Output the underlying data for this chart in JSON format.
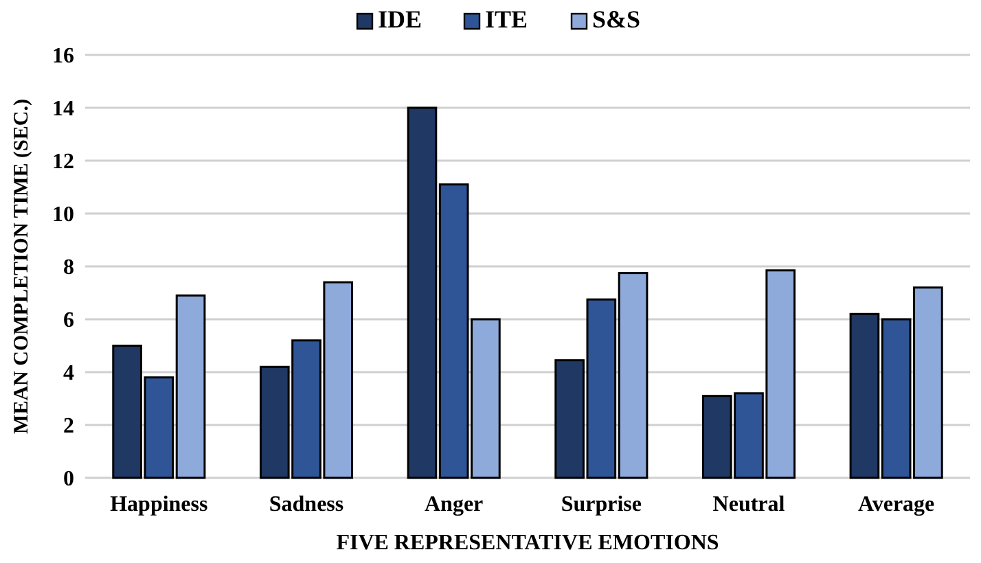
{
  "chart_data": {
    "type": "bar",
    "xlabel": "FIVE REPRESENTATIVE EMOTIONS",
    "ylabel": "MEAN COMPLETION TIME (SEC.)",
    "categories": [
      "Happiness",
      "Sadness",
      "Anger",
      "Surprise",
      "Neutral",
      "Average"
    ],
    "series": [
      {
        "name": "IDE",
        "color": "#1f3864",
        "values": [
          5.0,
          4.2,
          14.0,
          4.45,
          3.1,
          6.2
        ]
      },
      {
        "name": "ITE",
        "color": "#2f5597",
        "values": [
          3.8,
          5.2,
          11.1,
          6.75,
          3.2,
          6.0
        ]
      },
      {
        "name": "S&S",
        "color": "#8eaadb",
        "values": [
          6.9,
          7.4,
          6.0,
          7.75,
          7.85,
          7.2
        ]
      }
    ],
    "ylim": [
      0,
      16
    ],
    "yticks": [
      0,
      2,
      4,
      6,
      8,
      10,
      12,
      14,
      16
    ],
    "grid": "y",
    "legend": "top"
  }
}
